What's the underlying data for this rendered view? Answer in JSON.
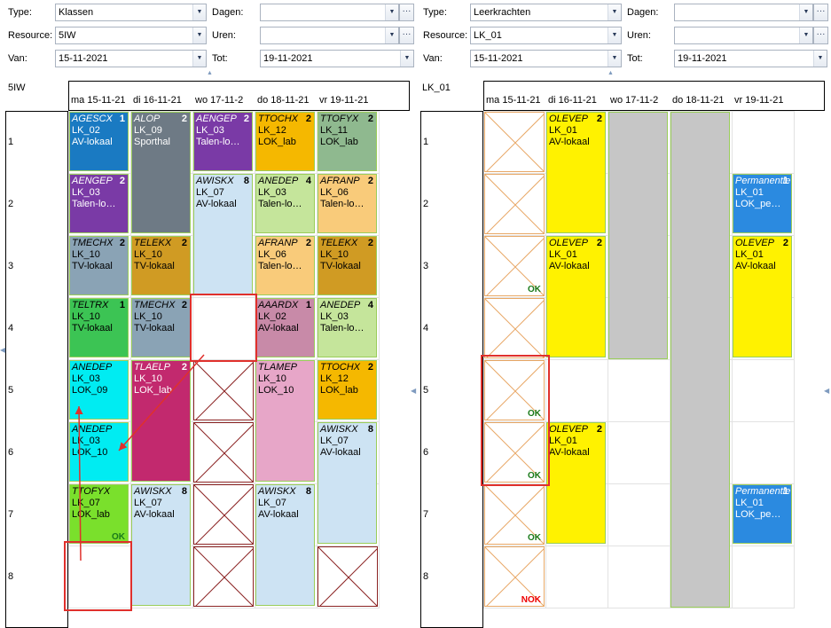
{
  "left": {
    "filters": {
      "type_label": "Type:",
      "type_value": "Klassen",
      "resource_label": "Resource:",
      "resource_value": "5IW",
      "van_label": "Van:",
      "van_value": "15-11-2021",
      "dagen_label": "Dagen:",
      "dagen_value": "",
      "uren_label": "Uren:",
      "uren_value": "",
      "tot_label": "Tot:",
      "tot_value": "19-11-2021"
    },
    "title": "5IW",
    "days": [
      "ma 15-11-21",
      "di 16-11-21",
      "wo 17-11-2",
      "do 18-11-21",
      "vr 19-11-21"
    ],
    "hours": [
      "1",
      "2",
      "3",
      "4",
      "5",
      "6",
      "7",
      "8"
    ]
  },
  "right": {
    "filters": {
      "type_label": "Type:",
      "type_value": "Leerkrachten",
      "resource_label": "Resource:",
      "resource_value": "LK_01",
      "van_label": "Van:",
      "van_value": "15-11-2021",
      "dagen_label": "Dagen:",
      "dagen_value": "",
      "uren_label": "Uren:",
      "uren_value": "",
      "tot_label": "Tot:",
      "tot_value": "19-11-2021"
    },
    "title": "LK_01",
    "days": [
      "ma 15-11-21",
      "di 16-11-21",
      "wo 17-11-2",
      "do 18-11-21",
      "vr 19-11-21"
    ],
    "hours": [
      "1",
      "2",
      "3",
      "4",
      "5",
      "6",
      "7",
      "8"
    ]
  },
  "glyphs": {
    "dropdown": "▼",
    "ellipsis": "···",
    "collapse_up": "▲",
    "side_left": "◀"
  },
  "left_lessons": [
    {
      "day": 0,
      "hour": 0,
      "span": 1,
      "code": "AGESCX",
      "lk": "LK_02",
      "room": "AV-lokaal",
      "count": "1",
      "color": "#1a7ac2",
      "white": true
    },
    {
      "day": 1,
      "hour": 0,
      "span": 2,
      "code": "ALOP",
      "lk": "LK_09",
      "room": "Sporthal",
      "count": "2",
      "color": "#6e7a85",
      "white": true
    },
    {
      "day": 2,
      "hour": 0,
      "span": 1,
      "code": "AENGEP",
      "lk": "LK_03",
      "room": "Talen-lokaal",
      "count": "2",
      "color": "#7a3aa6",
      "white": true
    },
    {
      "day": 3,
      "hour": 0,
      "span": 1,
      "code": "TTOCHX",
      "lk": "LK_12",
      "room": "LOK_lab",
      "count": "2",
      "color": "#f5b800",
      "white": false
    },
    {
      "day": 4,
      "hour": 0,
      "span": 1,
      "code": "TTOFYX",
      "lk": "LK_11",
      "room": "LOK_lab",
      "count": "2",
      "color": "#8fb98f",
      "white": false
    },
    {
      "day": 0,
      "hour": 1,
      "span": 1,
      "code": "AENGEP",
      "lk": "LK_03",
      "room": "Talen-lokaal",
      "count": "2",
      "color": "#7a3aa6",
      "white": true
    },
    {
      "day": 2,
      "hour": 1,
      "span": 2,
      "code": "AWISKX",
      "lk": "LK_07",
      "room": "AV-lokaal",
      "count": "8",
      "color": "#cde3f3",
      "white": false
    },
    {
      "day": 3,
      "hour": 1,
      "span": 1,
      "code": "ANEDEP",
      "lk": "LK_03",
      "room": "Talen-lokaal",
      "count": "4",
      "color": "#c5e59b",
      "white": false
    },
    {
      "day": 4,
      "hour": 1,
      "span": 1,
      "code": "AFRANP",
      "lk": "LK_06",
      "room": "Talen-lokaal",
      "count": "2",
      "color": "#f9cb7a",
      "white": false
    },
    {
      "day": 0,
      "hour": 2,
      "span": 1,
      "code": "TMECHX",
      "lk": "LK_10",
      "room": "TV-lokaal",
      "count": "2",
      "color": "#8aa3b5",
      "white": false
    },
    {
      "day": 1,
      "hour": 2,
      "span": 1,
      "code": "TELEKX",
      "lk": "LK_10",
      "room": "TV-lokaal",
      "count": "2",
      "color": "#d09b23",
      "white": false
    },
    {
      "day": 3,
      "hour": 2,
      "span": 1,
      "code": "AFRANP",
      "lk": "LK_06",
      "room": "Talen-lokaal",
      "count": "2",
      "color": "#f9cb7a",
      "white": false
    },
    {
      "day": 4,
      "hour": 2,
      "span": 1,
      "code": "TELEKX",
      "lk": "LK_10",
      "room": "TV-lokaal",
      "count": "2",
      "color": "#d09b23",
      "white": false
    },
    {
      "day": 0,
      "hour": 3,
      "span": 1,
      "code": "TELTRX",
      "lk": "LK_10",
      "room": "TV-lokaal",
      "count": "1",
      "color": "#3cc454",
      "white": false
    },
    {
      "day": 1,
      "hour": 3,
      "span": 1,
      "code": "TMECHX",
      "lk": "LK_10",
      "room": "TV-lokaal",
      "count": "2",
      "color": "#8aa3b5",
      "white": false
    },
    {
      "day": 3,
      "hour": 3,
      "span": 1,
      "code": "AAARDX",
      "lk": "LK_02",
      "room": "AV-lokaal",
      "count": "1",
      "color": "#c88aa8",
      "white": false
    },
    {
      "day": 4,
      "hour": 3,
      "span": 1,
      "code": "ANEDEP",
      "lk": "LK_03",
      "room": "Talen-lokaal",
      "count": "4",
      "color": "#c5e59b",
      "white": false
    },
    {
      "day": 0,
      "hour": 4,
      "span": 1,
      "code": "ANEDEP",
      "lk": "LK_03",
      "room": "LOK_09",
      "count": "",
      "color": "#00ecf2",
      "white": false
    },
    {
      "day": 1,
      "hour": 4,
      "span": 2,
      "code": "TLAELP",
      "lk": "LK_10",
      "room": "LOK_lab",
      "count": "2",
      "color": "#c2296e",
      "white": true
    },
    {
      "day": 3,
      "hour": 4,
      "span": 2,
      "code": "TLAMEP",
      "lk": "LK_10",
      "room": "LOK_10",
      "count": "",
      "color": "#e7a6c8",
      "white": false
    },
    {
      "day": 4,
      "hour": 4,
      "span": 1,
      "code": "TTOCHX",
      "lk": "LK_12",
      "room": "LOK_lab",
      "count": "2",
      "color": "#f5b800",
      "white": false
    },
    {
      "day": 0,
      "hour": 5,
      "span": 1,
      "code": "ANEDEP",
      "lk": "LK_03",
      "room": "LOK_10",
      "count": "",
      "color": "#00ecf2",
      "white": false
    },
    {
      "day": 4,
      "hour": 5,
      "span": 2,
      "code": "AWISKX",
      "lk": "LK_07",
      "room": "AV-lokaal",
      "count": "8",
      "color": "#cde3f3",
      "white": false
    },
    {
      "day": 0,
      "hour": 6,
      "span": 1,
      "code": "TTOFYX",
      "lk": "LK_07",
      "room": "LOK_lab",
      "count": "",
      "color": "#7ae02c",
      "white": false,
      "ok": "OK"
    },
    {
      "day": 1,
      "hour": 6,
      "span": 2,
      "code": "AWISKX",
      "lk": "LK_07",
      "room": "AV-lokaal",
      "count": "8",
      "color": "#cde3f3",
      "white": false
    },
    {
      "day": 3,
      "hour": 6,
      "span": 2,
      "code": "AWISKX",
      "lk": "LK_07",
      "room": "AV-lokaal",
      "count": "8",
      "color": "#cde3f3",
      "white": false
    }
  ],
  "left_x": [
    {
      "day": 2,
      "hour": 4
    },
    {
      "day": 2,
      "hour": 5
    },
    {
      "day": 2,
      "hour": 6
    },
    {
      "day": 2,
      "hour": 7
    },
    {
      "day": 4,
      "hour": 7
    }
  ],
  "right_lessons": [
    {
      "day": 1,
      "hour": 0,
      "span": 2,
      "code": "OLEVEP",
      "lk": "LK_01",
      "room": "AV-lokaal",
      "count": "2",
      "color": "#fff200",
      "white": false
    },
    {
      "day": 4,
      "hour": 1,
      "span": 1,
      "code": "Permanentie",
      "lk": "LK_01",
      "room": "LOK_permanentie",
      "count": "1",
      "color": "#2b8ae0",
      "white": true
    },
    {
      "day": 1,
      "hour": 2,
      "span": 2,
      "code": "OLEVEP",
      "lk": "LK_01",
      "room": "AV-lokaal",
      "count": "2",
      "color": "#fff200",
      "white": false
    },
    {
      "day": 4,
      "hour": 2,
      "span": 2,
      "code": "OLEVEP",
      "lk": "LK_01",
      "room": "AV-lokaal",
      "count": "2",
      "color": "#fff200",
      "white": false
    },
    {
      "day": 1,
      "hour": 5,
      "span": 2,
      "code": "OLEVEP",
      "lk": "LK_01",
      "room": "AV-lokaal",
      "count": "2",
      "color": "#fff200",
      "white": false
    },
    {
      "day": 4,
      "hour": 6,
      "span": 1,
      "code": "Permanentie",
      "lk": "LK_01",
      "room": "LOK_permanentie",
      "count": "1",
      "color": "#2b8ae0",
      "white": true
    }
  ],
  "right_x": [
    {
      "day": 0,
      "hour": 0,
      "mark": ""
    },
    {
      "day": 0,
      "hour": 1,
      "mark": ""
    },
    {
      "day": 0,
      "hour": 2,
      "mark": "OK"
    },
    {
      "day": 0,
      "hour": 3,
      "mark": ""
    },
    {
      "day": 0,
      "hour": 4,
      "mark": "OK"
    },
    {
      "day": 0,
      "hour": 5,
      "mark": "OK"
    },
    {
      "day": 0,
      "hour": 6,
      "mark": "OK"
    },
    {
      "day": 0,
      "hour": 7,
      "mark": "NOK"
    }
  ]
}
